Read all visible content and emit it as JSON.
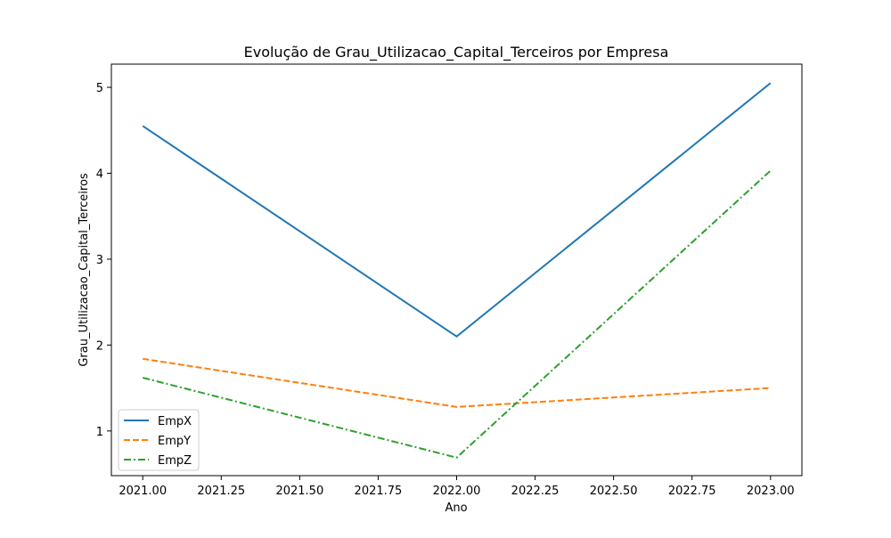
{
  "chart_data": {
    "type": "line",
    "title": "Evolução de Grau_Utilizacao_Capital_Terceiros por Empresa",
    "xlabel": "Ano",
    "ylabel": "Grau_Utilizacao_Capital_Terceiros",
    "x": [
      2021.0,
      2022.0,
      2023.0
    ],
    "xlim": [
      2020.9,
      2023.1
    ],
    "ylim": [
      0.48,
      5.27
    ],
    "xticks": [
      2021.0,
      2021.25,
      2021.5,
      2021.75,
      2022.0,
      2022.25,
      2022.5,
      2022.75,
      2023.0
    ],
    "xtick_labels": [
      "2021.00",
      "2021.25",
      "2021.50",
      "2021.75",
      "2022.00",
      "2022.25",
      "2022.50",
      "2022.75",
      "2023.00"
    ],
    "yticks": [
      1,
      2,
      3,
      4,
      5
    ],
    "ytick_labels": [
      "1",
      "2",
      "3",
      "4",
      "5"
    ],
    "grid": false,
    "legend_position": "lower-left",
    "series": [
      {
        "name": "EmpX",
        "values": [
          4.55,
          2.1,
          5.05
        ],
        "color": "#1f77b4",
        "style": "solid"
      },
      {
        "name": "EmpY",
        "values": [
          1.84,
          1.28,
          1.5
        ],
        "color": "#ff7f0e",
        "style": "dashed"
      },
      {
        "name": "EmpZ",
        "values": [
          1.62,
          0.69,
          4.03
        ],
        "color": "#2ca02c",
        "style": "dashdot"
      }
    ]
  }
}
